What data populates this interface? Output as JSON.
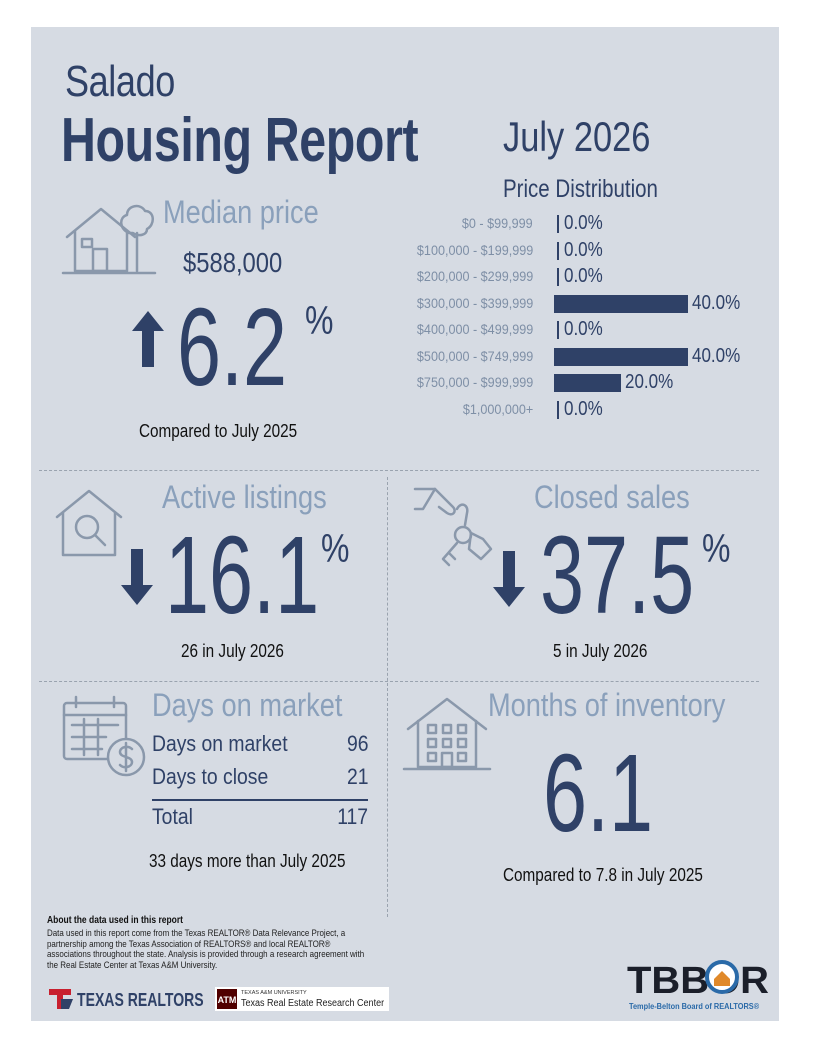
{
  "header": {
    "city": "Salado",
    "title": "Housing Report",
    "period": "July 2026"
  },
  "median_price": {
    "label": "Median price",
    "value": "$588,000",
    "direction": "up",
    "change": "6.2",
    "percent_sign": "%",
    "comparison": "Compared to July 2025",
    "icon": "house-tree-icon"
  },
  "price_distribution": {
    "title": "Price Distribution",
    "rows": [
      {
        "label": "$0 - $99,999",
        "value": "0.0%",
        "pct": 0
      },
      {
        "label": "$100,000 - $199,999",
        "value": "0.0%",
        "pct": 0
      },
      {
        "label": "$200,000 - $299,999",
        "value": "0.0%",
        "pct": 0
      },
      {
        "label": "$300,000 - $399,999",
        "value": "40.0%",
        "pct": 40
      },
      {
        "label": "$400,000 - $499,999",
        "value": "0.0%",
        "pct": 0
      },
      {
        "label": "$500,000 - $749,999",
        "value": "40.0%",
        "pct": 40
      },
      {
        "label": "$750,000 - $999,999",
        "value": "20.0%",
        "pct": 20
      },
      {
        "label": "$1,000,000+",
        "value": "0.0%",
        "pct": 0
      }
    ],
    "bar_color": "#2f4167"
  },
  "active_listings": {
    "label": "Active listings",
    "direction": "down",
    "change": "16.1",
    "percent_sign": "%",
    "subtitle": "26 in July 2026",
    "icon": "house-search-icon"
  },
  "closed_sales": {
    "label": "Closed sales",
    "direction": "down",
    "change": "37.5",
    "percent_sign": "%",
    "subtitle": "5 in July 2026",
    "icon": "hand-keys-icon"
  },
  "days_on_market": {
    "label": "Days on market",
    "rows": [
      {
        "label": "Days on market",
        "value": "96"
      },
      {
        "label": "Days to close",
        "value": "21"
      }
    ],
    "total_label": "Total",
    "total_value": "117",
    "subtitle": "33 days more than July 2025",
    "icon": "calendar-dollar-icon"
  },
  "months_of_inventory": {
    "label": "Months of inventory",
    "value": "6.1",
    "subtitle": "Compared to 7.8 in July 2025",
    "icon": "apartment-building-icon"
  },
  "footer": {
    "about_title": "About the data used in this report",
    "about_text": "Data used in this report come from the Texas REALTOR® Data Relevance Project, a partnership among the Texas Association of REALTORS® and local REALTOR® associations throughout the state. Analysis is provided through a research agreement with the Real Estate Center at Texas A&M University.",
    "texas_realtors": "TEXAS REALTORS",
    "am_small": "TEXAS A&M UNIVERSITY",
    "am_center": "Texas Real Estate Research Center",
    "tbbor": "TBBOR",
    "tbbor_sub": "Temple-Belton Board of REALTORS®"
  },
  "colors": {
    "panel": "#d6dbe3",
    "navy": "#2f4167",
    "label_blue": "#8aa0bb",
    "tbbor_blue": "#2a6aa8"
  }
}
